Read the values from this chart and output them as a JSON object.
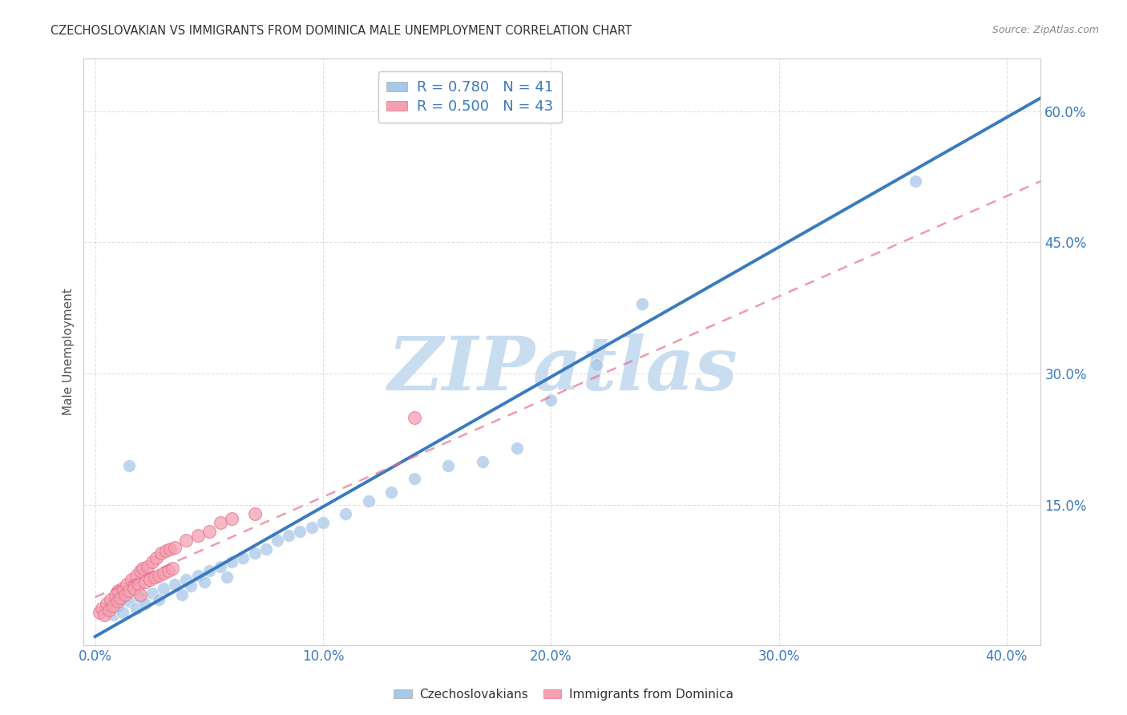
{
  "title": "CZECHOSLOVAKIAN VS IMMIGRANTS FROM DOMINICA MALE UNEMPLOYMENT CORRELATION CHART",
  "source": "Source: ZipAtlas.com",
  "ylabel": "Male Unemployment",
  "x_tick_labels": [
    "0.0%",
    "10.0%",
    "20.0%",
    "30.0%",
    "40.0%"
  ],
  "x_tick_values": [
    0.0,
    0.1,
    0.2,
    0.3,
    0.4
  ],
  "y_tick_labels": [
    "15.0%",
    "30.0%",
    "45.0%",
    "60.0%"
  ],
  "y_tick_values": [
    0.15,
    0.3,
    0.45,
    0.6
  ],
  "xlim": [
    -0.005,
    0.415
  ],
  "ylim": [
    -0.01,
    0.66
  ],
  "legend_blue_label": "R = 0.780   N = 41",
  "legend_pink_label": "R = 0.500   N = 43",
  "legend_label_blue": "Czechoslovakians",
  "legend_label_pink": "Immigrants from Dominica",
  "blue_scatter_color": "#a8c8e8",
  "blue_line_color": "#3a7abf",
  "pink_scatter_color": "#f4a0b0",
  "pink_scatter_edge": "#e87090",
  "pink_line_color": "#e87090",
  "watermark": "ZIPatlas",
  "watermark_color": "#c8ddf0",
  "blue_scatter_x": [
    0.005,
    0.008,
    0.01,
    0.012,
    0.015,
    0.018,
    0.02,
    0.022,
    0.025,
    0.028,
    0.03,
    0.035,
    0.038,
    0.04,
    0.042,
    0.045,
    0.048,
    0.05,
    0.055,
    0.058,
    0.06,
    0.065,
    0.07,
    0.075,
    0.08,
    0.085,
    0.09,
    0.095,
    0.1,
    0.11,
    0.12,
    0.13,
    0.14,
    0.155,
    0.17,
    0.185,
    0.2,
    0.22,
    0.24,
    0.36,
    0.015
  ],
  "blue_scatter_y": [
    0.03,
    0.025,
    0.035,
    0.028,
    0.04,
    0.032,
    0.045,
    0.038,
    0.05,
    0.042,
    0.055,
    0.06,
    0.048,
    0.065,
    0.058,
    0.07,
    0.062,
    0.075,
    0.08,
    0.068,
    0.085,
    0.09,
    0.095,
    0.1,
    0.11,
    0.115,
    0.12,
    0.125,
    0.13,
    0.14,
    0.155,
    0.165,
    0.18,
    0.195,
    0.2,
    0.215,
    0.27,
    0.31,
    0.38,
    0.52,
    0.195
  ],
  "pink_scatter_x": [
    0.002,
    0.003,
    0.004,
    0.005,
    0.006,
    0.007,
    0.008,
    0.009,
    0.01,
    0.01,
    0.011,
    0.012,
    0.013,
    0.014,
    0.015,
    0.016,
    0.017,
    0.018,
    0.019,
    0.02,
    0.02,
    0.021,
    0.022,
    0.023,
    0.024,
    0.025,
    0.026,
    0.027,
    0.028,
    0.029,
    0.03,
    0.031,
    0.032,
    0.033,
    0.034,
    0.035,
    0.04,
    0.045,
    0.05,
    0.055,
    0.06,
    0.07,
    0.14
  ],
  "pink_scatter_y": [
    0.028,
    0.032,
    0.025,
    0.038,
    0.03,
    0.042,
    0.035,
    0.048,
    0.04,
    0.052,
    0.044,
    0.055,
    0.048,
    0.06,
    0.052,
    0.065,
    0.055,
    0.07,
    0.06,
    0.075,
    0.048,
    0.078,
    0.062,
    0.08,
    0.065,
    0.085,
    0.068,
    0.09,
    0.07,
    0.095,
    0.072,
    0.098,
    0.075,
    0.1,
    0.078,
    0.102,
    0.11,
    0.115,
    0.12,
    0.13,
    0.135,
    0.14,
    0.25
  ],
  "blue_line_x0": 0.0,
  "blue_line_y0": 0.0,
  "blue_line_x1": 0.415,
  "blue_line_y1": 0.615,
  "pink_line_x0": 0.0,
  "pink_line_y0": 0.045,
  "pink_line_x1": 0.415,
  "pink_line_y1": 0.52,
  "background_color": "#ffffff",
  "grid_color": "#e0e0e0"
}
